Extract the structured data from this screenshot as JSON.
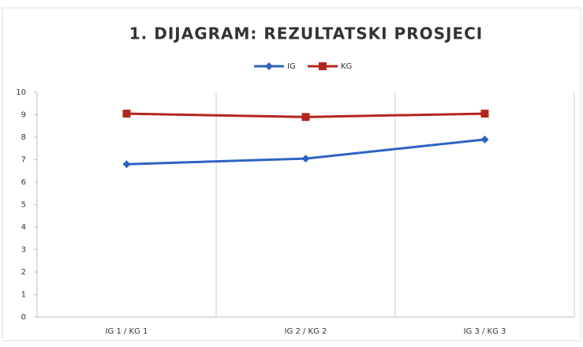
{
  "chart_data": {
    "type": "line",
    "title": "1. DIJAGRAM: REZULTATSKI PROSJECI",
    "categories": [
      "IG 1 / KG 1",
      "IG 2 / KG 2",
      "IG 3 / KG 3"
    ],
    "series": [
      {
        "name": "IG",
        "color": "#2e63c4",
        "marker": "diamond",
        "values": [
          6.8,
          7.05,
          7.9
        ]
      },
      {
        "name": "KG",
        "color": "#b3261e",
        "marker": "square",
        "values": [
          9.05,
          8.9,
          9.05
        ]
      }
    ],
    "ylim": [
      0,
      10
    ],
    "yticks": [
      0,
      1,
      2,
      3,
      4,
      5,
      6,
      7,
      8,
      9,
      10
    ],
    "legend": "top"
  }
}
